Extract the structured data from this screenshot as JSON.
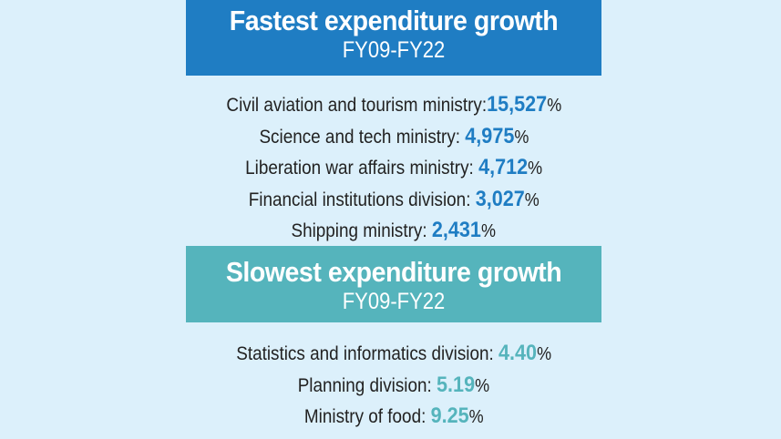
{
  "fastest": {
    "title": "Fastest expenditure growth",
    "period": "FY09-FY22",
    "items": [
      {
        "label": "Civil aviation and tourism ministry:",
        "value": "15,527",
        "unit": "%"
      },
      {
        "label": "Science and tech ministry: ",
        "value": "4,975",
        "unit": "%"
      },
      {
        "label": "Liberation war affairs ministry: ",
        "value": "4,712",
        "unit": "%"
      },
      {
        "label": "Financial institutions division: ",
        "value": "3,027",
        "unit": "%"
      },
      {
        "label": "Shipping ministry: ",
        "value": "2,431",
        "unit": "%"
      }
    ]
  },
  "slowest": {
    "title": "Slowest expenditure growth",
    "period": "FY09-FY22",
    "items": [
      {
        "label": "Statistics and informatics division: ",
        "value": "4.40",
        "unit": "%"
      },
      {
        "label": "Planning division: ",
        "value": "5.19",
        "unit": "%"
      },
      {
        "label": "Ministry of food: ",
        "value": "9.25",
        "unit": "%"
      }
    ]
  },
  "colors": {
    "background": "#dcf0fb",
    "fastest_accent": "#1f7dc3",
    "slowest_accent": "#55b4bc"
  }
}
